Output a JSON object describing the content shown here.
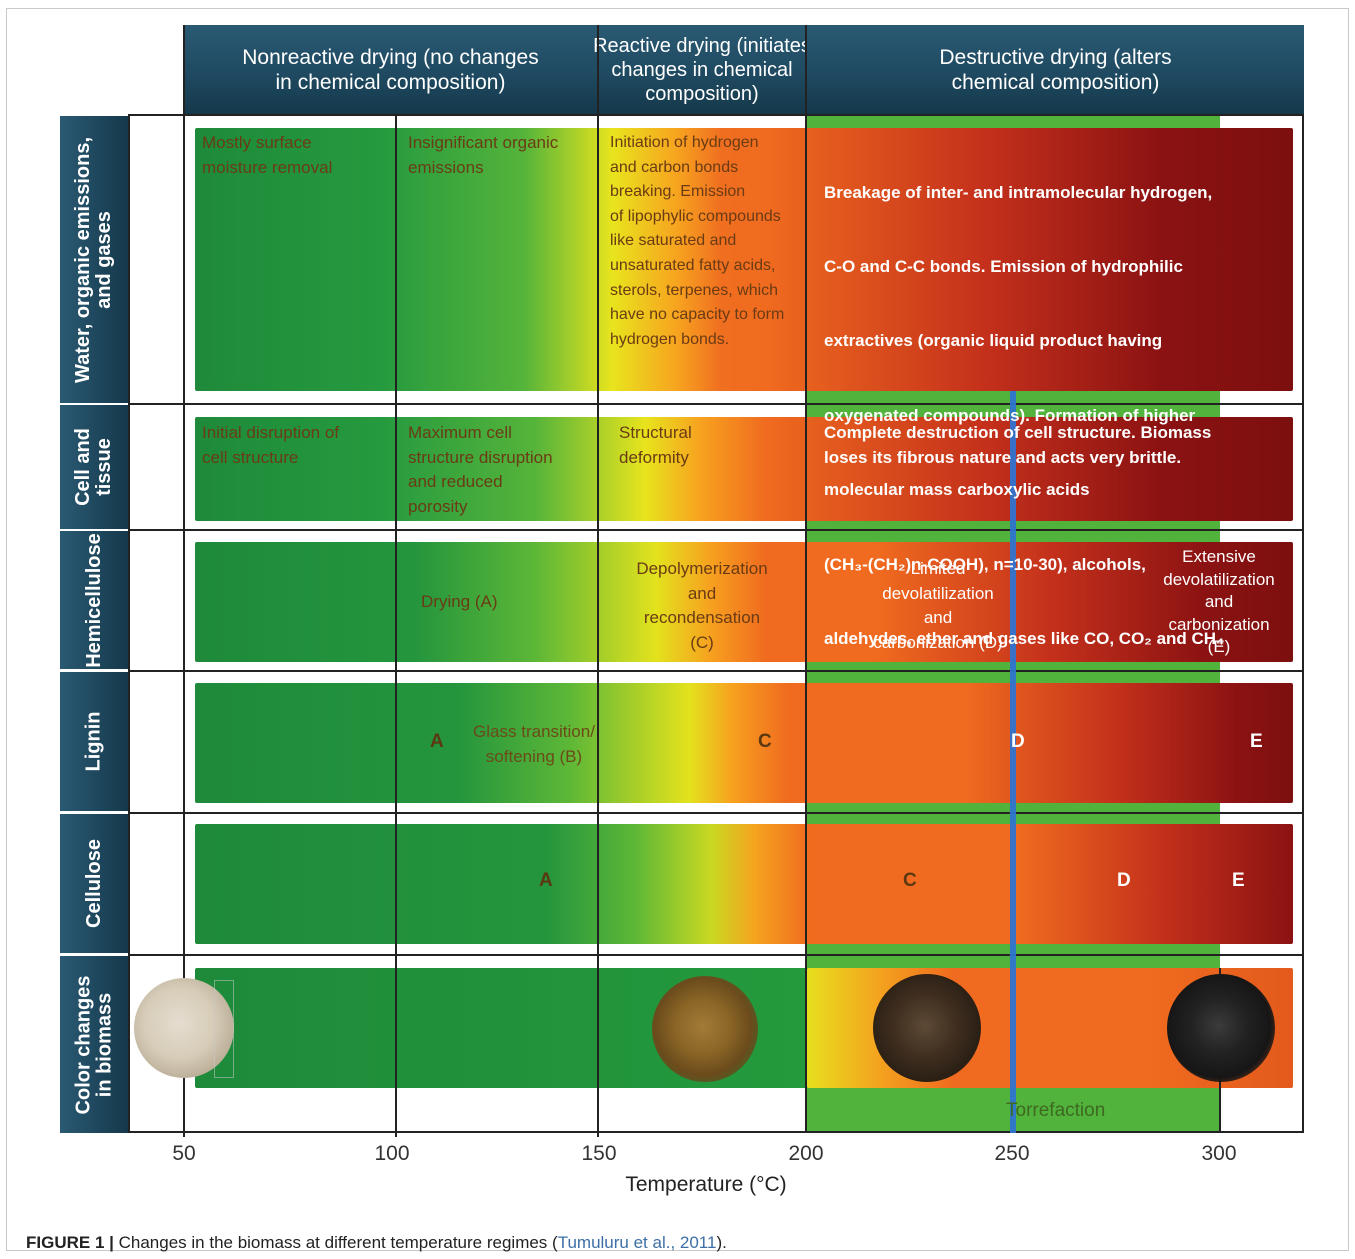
{
  "headers": {
    "nonreactive": "Nonreactive drying (no changes\nin chemical composition)",
    "reactive": "Reactive drying (initiates\nchanges in chemical\ncomposition)",
    "destructive": "Destructive drying (alters\nchemical composition)"
  },
  "rows": {
    "water": "Water, organic emissions,\nand gases",
    "cell": "Cell and\ntissue",
    "hemicellulose": "Hemicellulose",
    "lignin": "Lignin",
    "cellulose": "Cellulose",
    "color": "Color changes\nin biomass"
  },
  "cells": {
    "water_1": "Mostly surface\nmoisture removal",
    "water_2": "Insignificant organic\nemissions",
    "water_3": "Initiation of hydrogen\nand carbon bonds\nbreaking. Emission\nof lipophylic compounds\nlike saturated and\nunsaturated fatty acids,\nsterols, terpenes, which\nhave no capacity to form\nhydrogen bonds.",
    "water_4_line1": "Breakage of inter- and intramolecular hydrogen,",
    "water_4_line2": "C-O and C-C bonds. Emission of hydrophilic",
    "water_4_line3": "extractives (organic liquid product having",
    "water_4_line4": "oxygenated compounds). Formation of higher",
    "water_4_line5": "molecular mass carboxylic acids",
    "water_4_line6": "(CH₃-(CH₂)n-COOH), n=10-30), alcohols,",
    "water_4_line7": "aldehydes, ether and gases like CO, CO₂ and CH₄",
    "cell_1": "Initial disruption of\ncell structure",
    "cell_2": "Maximum cell\nstructure disruption\nand reduced\nporosity",
    "cell_3": "Structural\ndeformity",
    "cell_4": "Complete destruction of cell structure. Biomass\nloses its fibrous nature and acts very brittle.",
    "hemi_a": "Drying (A)",
    "hemi_c": "Depolymerization\nand\nrecondensation\n(C)",
    "hemi_d": "Limited\ndevolatilization\nand\ncarbonization (D)",
    "hemi_e": "Extensive\ndevolatilization\nand\ncarbonization\n(E)",
    "lignin_a": "A",
    "lignin_b": "Glass transition/\nsoftening (B)",
    "lignin_c": "C",
    "lignin_d": "D",
    "lignin_e": "E",
    "cellulose_a": "A",
    "cellulose_c": "C",
    "cellulose_d": "D",
    "cellulose_e": "E",
    "torrefaction": "Torrefaction"
  },
  "axis": {
    "ticks": [
      "50",
      "100",
      "150",
      "200",
      "250",
      "300"
    ],
    "title": "Temperature (°C)"
  },
  "caption": {
    "figure": "FIGURE 1 |",
    "text": " Changes in the biomass at different temperature regimes (",
    "citation": "Tumuluru et al., 2011",
    "end": ")."
  },
  "colors": {
    "header": "#1f4a61",
    "green": "#1e8a3a",
    "yellow": "#e8e41d",
    "orange": "#f06b1f",
    "dark_red": "#7d0f0f",
    "torrefaction_green": "#51b33c",
    "torrefaction_line": "#2f74d0"
  }
}
